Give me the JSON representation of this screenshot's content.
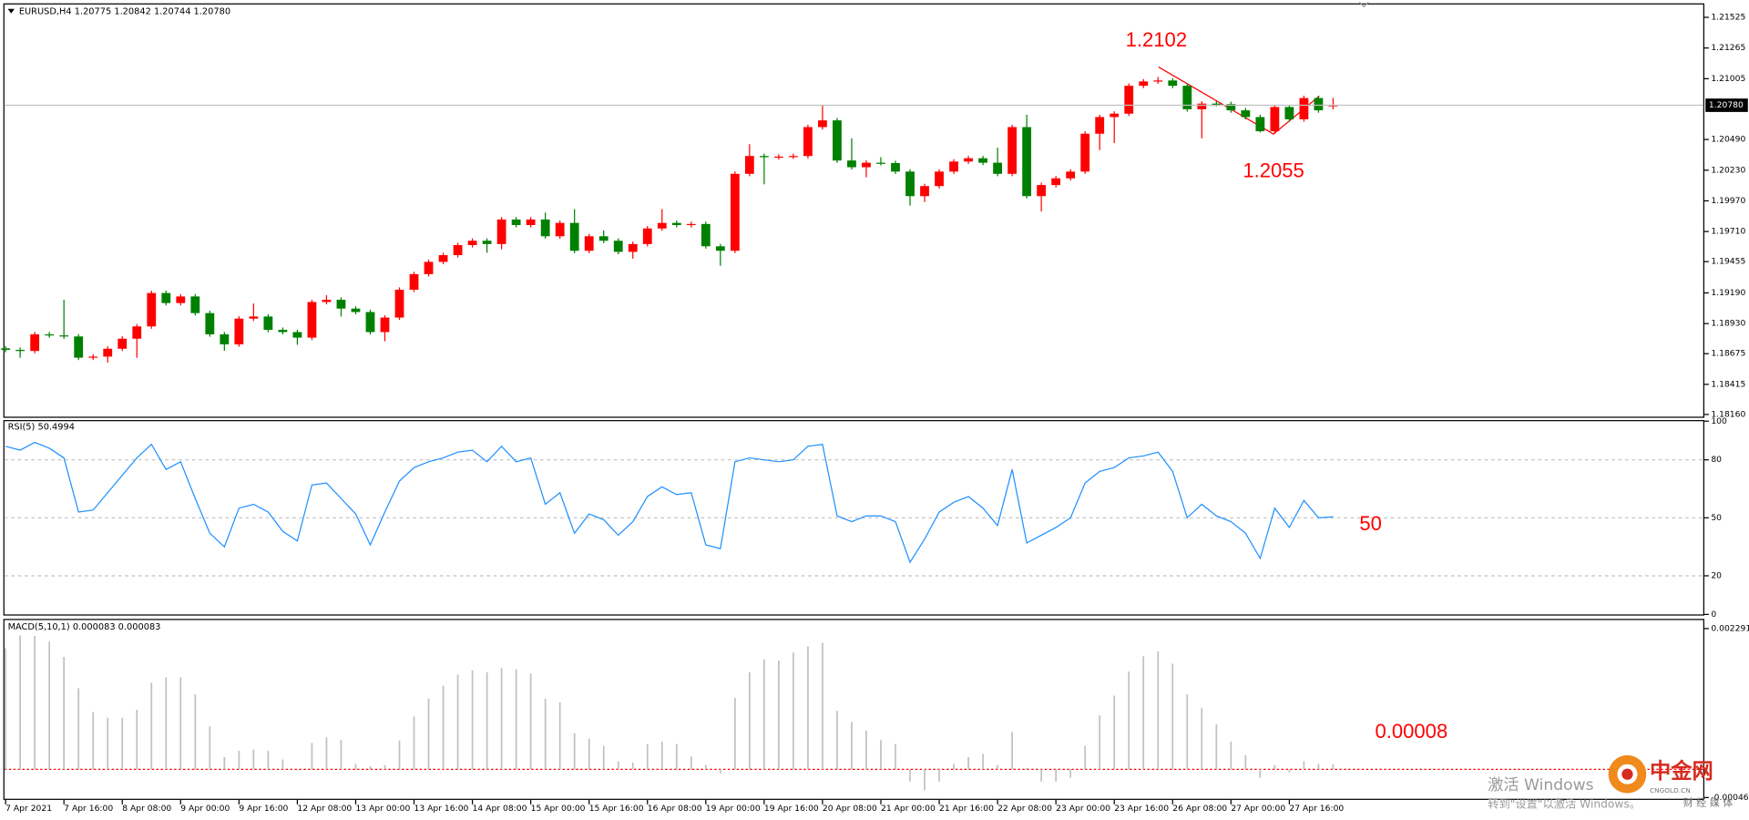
{
  "chart_data": [
    {
      "type": "candlestick",
      "title": "EURUSD,H4  1.20775 1.20842 1.20744 1.20780",
      "last_price_label": "1.20780",
      "up_color": "#ff0000",
      "down_color": "#008000",
      "categories": [
        "7 Apr 2021",
        null,
        null,
        null,
        "7 Apr 16:00",
        null,
        null,
        null,
        "8 Apr 08:00",
        null,
        null,
        null,
        "9 Apr 00:00",
        null,
        null,
        null,
        "9 Apr 16:00",
        null,
        null,
        null,
        "12 Apr 08:00",
        null,
        null,
        null,
        "13 Apr 00:00",
        null,
        null,
        null,
        "13 Apr 16:00",
        null,
        null,
        null,
        "14 Apr 08:00",
        null,
        null,
        null,
        "15 Apr 00:00",
        null,
        null,
        null,
        "15 Apr 16:00",
        null,
        null,
        null,
        "16 Apr 08:00",
        null,
        null,
        null,
        "19 Apr 00:00",
        null,
        null,
        null,
        "19 Apr 16:00",
        null,
        null,
        null,
        "20 Apr 08:00",
        null,
        null,
        null,
        "21 Apr 00:00",
        null,
        null,
        null,
        "21 Apr 16:00",
        null,
        null,
        null,
        "22 Apr 08:00",
        null,
        null,
        null,
        "23 Apr 00:00",
        null,
        null,
        null,
        "23 Apr 16:00",
        null,
        null,
        null,
        "26 Apr 08:00",
        null,
        null,
        null,
        "27 Apr 00:00",
        null,
        null,
        null,
        "27 Apr 16:00",
        null,
        null,
        null
      ],
      "open": [
        1.1872,
        1.18707,
        1.18698,
        1.18839,
        1.1883,
        1.18821,
        1.18641,
        1.1865,
        1.18717,
        1.18802,
        1.18906,
        1.19189,
        1.19104,
        1.1916,
        1.19019,
        1.18839,
        1.18754,
        1.18972,
        1.1899,
        1.18877,
        1.18858,
        1.18811,
        1.19113,
        1.19132,
        1.19057,
        1.19028,
        1.18858,
        1.18981,
        1.19217,
        1.19349,
        1.19453,
        1.1951,
        1.19595,
        1.19632,
        1.19604,
        1.19812,
        1.19765,
        1.19812,
        1.1967,
        1.19783,
        1.19547,
        1.1967,
        1.19632,
        1.19538,
        1.19604,
        1.19736,
        1.19783,
        1.19765,
        1.19774,
        1.19585,
        1.19547,
        1.20199,
        1.2035,
        1.2034,
        1.20345,
        1.2035,
        1.20595,
        1.20652,
        1.20312,
        1.20255,
        1.20293,
        1.2029,
        1.20218,
        1.2001,
        1.20095,
        1.20218,
        1.20303,
        1.20331,
        1.20293,
        1.20199,
        1.20595,
        1.2001,
        1.20104,
        1.20161,
        1.20218,
        1.20539,
        1.2068,
        1.20709,
        1.20945,
        1.20982,
        1.2099,
        1.20945,
        1.20746,
        1.20794,
        1.2079,
        1.20737,
        1.2068,
        1.2056,
        1.20765,
        1.20661,
        1.20841,
        1.20775
      ],
      "high": [
        1.1874,
        1.18727,
        1.18859,
        1.18859,
        1.19132,
        1.18841,
        1.1867,
        1.18737,
        1.18822,
        1.18926,
        1.19209,
        1.19209,
        1.1918,
        1.1918,
        1.19039,
        1.18859,
        1.18992,
        1.191,
        1.1901,
        1.18897,
        1.18878,
        1.19133,
        1.1917,
        1.19152,
        1.19077,
        1.19048,
        1.19001,
        1.19237,
        1.19369,
        1.19473,
        1.1953,
        1.19615,
        1.19652,
        1.19652,
        1.19832,
        1.19832,
        1.19832,
        1.1987,
        1.19803,
        1.199,
        1.1969,
        1.1972,
        1.19652,
        1.19624,
        1.19756,
        1.199,
        1.19803,
        1.19794,
        1.19794,
        1.19605,
        1.20219,
        1.2045,
        1.2037,
        1.20365,
        1.2037,
        1.20615,
        1.2078,
        1.20672,
        1.205,
        1.20313,
        1.2034,
        1.2031,
        1.20238,
        1.20115,
        1.20238,
        1.20323,
        1.20351,
        1.20351,
        1.2042,
        1.20615,
        1.207,
        1.20124,
        1.20181,
        1.20238,
        1.20559,
        1.207,
        1.20729,
        1.20965,
        1.21002,
        1.2102,
        1.2101,
        1.20965,
        1.20814,
        1.20814,
        1.2081,
        1.20757,
        1.207,
        1.20785,
        1.20785,
        1.20861,
        1.20861,
        1.20842
      ],
      "low": [
        1.18687,
        1.1864,
        1.18678,
        1.1881,
        1.18801,
        1.18621,
        1.18621,
        1.186,
        1.18697,
        1.1864,
        1.18886,
        1.19084,
        1.19084,
        1.18999,
        1.18819,
        1.187,
        1.18734,
        1.18952,
        1.18857,
        1.18838,
        1.1875,
        1.18791,
        1.19093,
        1.1899,
        1.19008,
        1.18838,
        1.1878,
        1.18961,
        1.19197,
        1.19329,
        1.19433,
        1.1949,
        1.19575,
        1.1953,
        1.1956,
        1.19745,
        1.19745,
        1.1965,
        1.1965,
        1.19527,
        1.19527,
        1.19612,
        1.19518,
        1.1948,
        1.19584,
        1.19716,
        1.19745,
        1.19745,
        1.19565,
        1.1942,
        1.19527,
        1.20179,
        1.2011,
        1.2032,
        1.20325,
        1.2033,
        1.20575,
        1.20292,
        1.20235,
        1.2017,
        1.2027,
        1.20198,
        1.1993,
        1.1996,
        1.20075,
        1.20198,
        1.20283,
        1.20273,
        1.20179,
        1.20179,
        1.1999,
        1.1988,
        1.20084,
        1.20141,
        1.20198,
        1.204,
        1.2046,
        1.20689,
        1.20925,
        1.20962,
        1.20925,
        1.20726,
        1.205,
        1.2077,
        1.20717,
        1.2066,
        1.2055,
        1.2054,
        1.20641,
        1.20641,
        1.20717,
        1.20744
      ],
      "close": [
        1.18707,
        1.18698,
        1.18839,
        1.1883,
        1.18821,
        1.18641,
        1.1865,
        1.18717,
        1.18802,
        1.18906,
        1.19189,
        1.19104,
        1.1916,
        1.19019,
        1.18839,
        1.18754,
        1.18972,
        1.1899,
        1.18877,
        1.18858,
        1.18811,
        1.19113,
        1.19132,
        1.19057,
        1.19028,
        1.18858,
        1.18981,
        1.19217,
        1.19349,
        1.19453,
        1.1951,
        1.19595,
        1.19632,
        1.19604,
        1.19812,
        1.19765,
        1.19812,
        1.1967,
        1.19783,
        1.19547,
        1.1967,
        1.19632,
        1.19538,
        1.19604,
        1.19736,
        1.19783,
        1.19765,
        1.19774,
        1.19585,
        1.19547,
        1.20199,
        1.2035,
        1.2034,
        1.20345,
        1.2035,
        1.20595,
        1.20652,
        1.20312,
        1.20255,
        1.20293,
        1.2029,
        1.20218,
        1.2001,
        1.20095,
        1.20218,
        1.20303,
        1.20331,
        1.20293,
        1.20199,
        1.20595,
        1.2001,
        1.20104,
        1.20161,
        1.20218,
        1.20539,
        1.2068,
        1.20709,
        1.20945,
        1.20982,
        1.2099,
        1.20945,
        1.20746,
        1.20794,
        1.2079,
        1.20737,
        1.2068,
        1.2056,
        1.20765,
        1.20661,
        1.20841,
        1.20737,
        1.2078
      ],
      "ylim": [
        1.18141,
        1.21634
      ],
      "yticks": [
        {
          "value": 1.1816,
          "label": "1.18160"
        },
        1.18415,
        1.18675,
        {
          "value": 1.1893,
          "label": "1.18930"
        },
        {
          "value": 1.1919,
          "label": "1.19190"
        },
        1.19455,
        {
          "value": 1.1971,
          "label": "1.19710"
        },
        {
          "value": 1.1997,
          "label": "1.19970"
        },
        {
          "value": 1.2023,
          "label": "1.20230"
        },
        {
          "value": 1.2049,
          "label": "1.20490"
        },
        1.21005,
        1.21265,
        1.21525
      ],
      "annotations": [
        1.2102,
        1.2055
      ]
    },
    {
      "type": "line",
      "title": "RSI(5) 50.4994",
      "color": "#1e90ff",
      "values": [
        87,
        85,
        89,
        86,
        81,
        53,
        54,
        63,
        72,
        81,
        88,
        75,
        79,
        60,
        42,
        35,
        55,
        57,
        53,
        43,
        38,
        67,
        68,
        60,
        52,
        36,
        53,
        69,
        76,
        79,
        81,
        84,
        85,
        79,
        87,
        79,
        81,
        57,
        63,
        42,
        52,
        49,
        41,
        48,
        61,
        66,
        62,
        63,
        36,
        34,
        79,
        81,
        80,
        79,
        80,
        87,
        88,
        51,
        48,
        51,
        51,
        48,
        27,
        39,
        53,
        58,
        61,
        55,
        46,
        75,
        37,
        41,
        45,
        50,
        68,
        74,
        76,
        81,
        82,
        84,
        74,
        50,
        57,
        51,
        48,
        42,
        29,
        55,
        45,
        59,
        50,
        50.4994
      ],
      "ylim": [
        0,
        100
      ],
      "yticks": [
        0,
        20,
        50,
        80,
        100
      ],
      "levels": [
        20,
        50,
        80
      ],
      "annotations": [
        50
      ]
    },
    {
      "type": "bar",
      "title": "MACD(5,10,1) 0.000083 0.000083",
      "color": "#c0c0c0",
      "level_color": "#ff0000",
      "values": [
        0.00197,
        0.00218,
        0.00217,
        0.00208,
        0.00183,
        0.00132,
        0.00093,
        0.00084,
        0.00084,
        0.00097,
        0.00141,
        0.0015,
        0.0015,
        0.00122,
        0.0007,
        0.0002,
        0.0003,
        0.00032,
        0.0003,
        0.00016,
        -2e-05,
        0.00043,
        0.00052,
        0.00048,
        9e-05,
        5e-05,
        7e-05,
        0.00047,
        0.00086,
        0.00115,
        0.00136,
        0.00154,
        0.00161,
        0.00158,
        0.00165,
        0.00163,
        0.00156,
        0.00115,
        0.00109,
        0.00059,
        0.0005,
        0.00038,
        0.00013,
        0.00011,
        0.00041,
        0.00045,
        0.00041,
        0.00021,
        7e-05,
        -7e-05,
        0.00116,
        0.00158,
        0.00179,
        0.00177,
        0.0019,
        0.002,
        0.00206,
        0.00095,
        0.00077,
        0.00063,
        0.00048,
        0.00041,
        -0.0002,
        -0.00034,
        -0.0002,
        9e-05,
        0.0002,
        0.00025,
        7e-05,
        0.00061,
        2e-05,
        -0.0002,
        -0.0002,
        -0.00014,
        0.00038,
        0.00088,
        0.0012,
        0.00159,
        0.00184,
        0.00192,
        0.00172,
        0.00122,
        0.001,
        0.00073,
        0.00045,
        0.00023,
        -0.00014,
        7e-05,
        -5e-05,
        0.00013,
        9e-05,
        8.3e-05
      ],
      "ylim": [
        -0.00048,
        0.00243
      ],
      "yticks": [
        0.002291,
        -0.00046
      ],
      "levels": [
        0
      ],
      "annotations": [
        8e-05
      ]
    }
  ],
  "overlay": {
    "activate_title": "激活 Windows",
    "activate_hint": "转到\"设置\"以激活 Windows。",
    "logo_text": "中金网",
    "logo_sub": "CNGOLD.CN",
    "logo_tag": "财 经 媒 体"
  }
}
